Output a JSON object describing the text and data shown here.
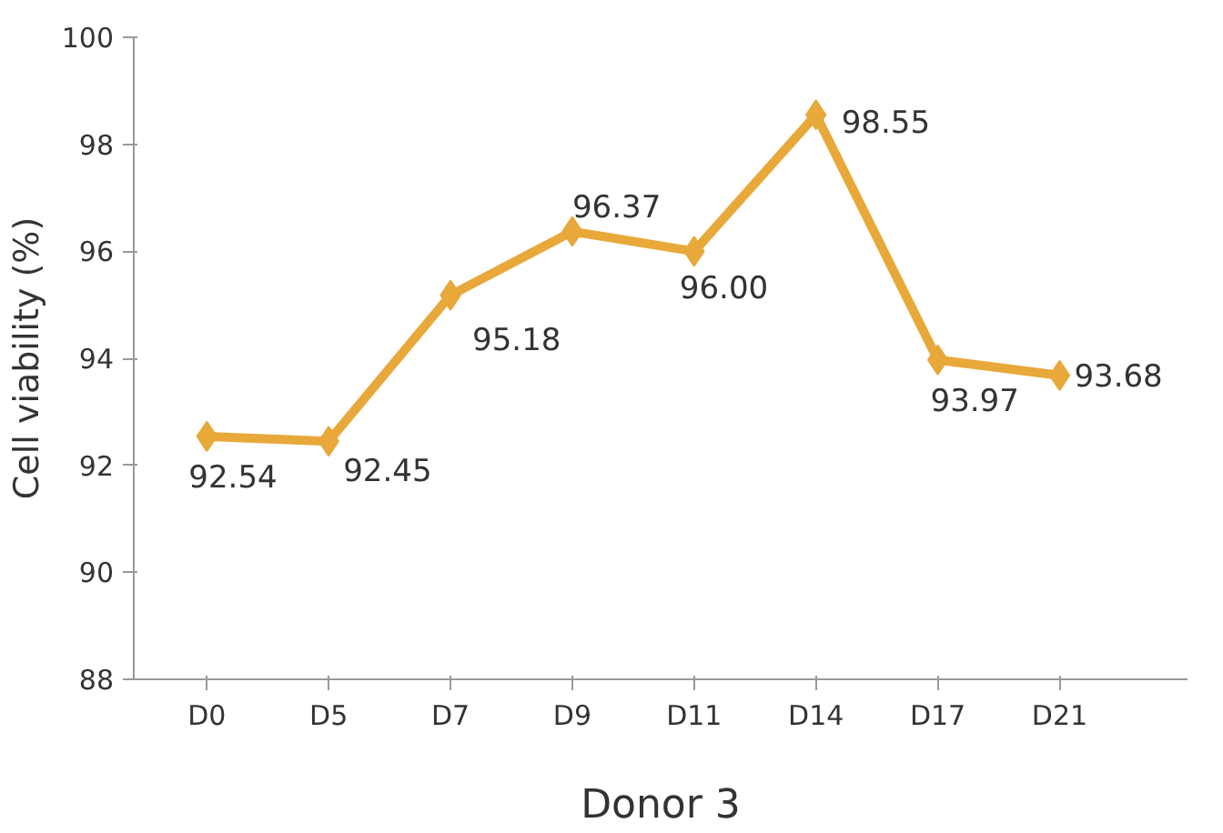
{
  "chart_data": {
    "type": "line",
    "xlabel": "Donor 3",
    "ylabel": "Cell viability (%)",
    "categories": [
      "D0",
      "D5",
      "D7",
      "D9",
      "D11",
      "D14",
      "D17",
      "D21"
    ],
    "series": [
      {
        "color": "#e8a83a",
        "values": [
          92.54,
          92.45,
          95.18,
          96.37,
          96.0,
          98.55,
          93.97,
          93.68
        ],
        "value_labels": [
          "92.54",
          "92.45",
          "95.18",
          "96.37",
          "96.00",
          "98.55",
          "93.97",
          "93.68"
        ]
      }
    ],
    "ylim": [
      88,
      100
    ],
    "yticks": [
      88,
      90,
      92,
      94,
      96,
      98,
      100
    ],
    "marker": "diamond",
    "line_style": "solid",
    "grid": false
  }
}
